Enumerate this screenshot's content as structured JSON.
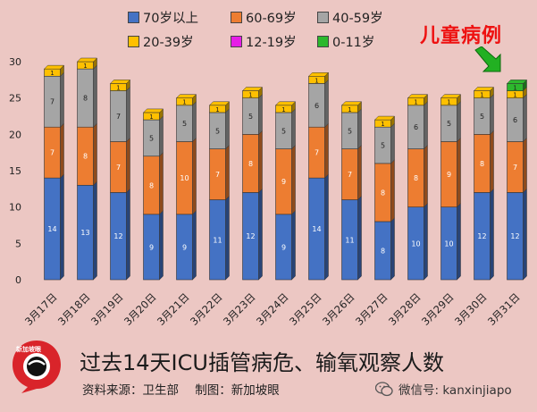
{
  "legend": [
    {
      "label": "70岁以上",
      "color": "#4472c4"
    },
    {
      "label": "60-69岁",
      "color": "#ed7d31"
    },
    {
      "label": "40-59岁",
      "color": "#a5a5a5"
    },
    {
      "label": "20-39岁",
      "color": "#ffc000"
    },
    {
      "label": "12-19岁",
      "color": "#e61ee6"
    },
    {
      "label": "0-11岁",
      "color": "#2db82d"
    }
  ],
  "annotation": "儿童病例",
  "footer": {
    "title": "过去14天ICU插管病危、输氧观察人数",
    "source": "资料来源：卫生部",
    "credit": "制图：新加坡眼",
    "logo_text": "新加坡眼",
    "wechat": "微信号: kanxinjiapo"
  },
  "chart_data": {
    "type": "bar",
    "stacked": true,
    "title": "过去14天ICU插管病危、输氧观察人数",
    "ylim": [
      0,
      30
    ],
    "yticks": [
      0,
      5,
      10,
      15,
      20,
      25,
      30
    ],
    "categories": [
      "3月17日",
      "3月18日",
      "3月19日",
      "3月20日",
      "3月21日",
      "3月22日",
      "3月23日",
      "3月24日",
      "3月25日",
      "3月26日",
      "3月27日",
      "3月28日",
      "3月29日",
      "3月30日",
      "3月31日"
    ],
    "series": [
      {
        "name": "70岁以上",
        "color": "#4472c4",
        "values": [
          14,
          13,
          12,
          9,
          9,
          11,
          12,
          9,
          14,
          11,
          8,
          10,
          10,
          12,
          12
        ]
      },
      {
        "name": "60-69岁",
        "color": "#ed7d31",
        "values": [
          7,
          8,
          7,
          8,
          10,
          7,
          8,
          9,
          7,
          7,
          8,
          8,
          9,
          8,
          7
        ]
      },
      {
        "name": "40-59岁",
        "color": "#a5a5a5",
        "values": [
          7,
          8,
          7,
          5,
          5,
          5,
          5,
          5,
          6,
          5,
          5,
          6,
          5,
          5,
          6
        ]
      },
      {
        "name": "20-39岁",
        "color": "#ffc000",
        "values": [
          1,
          1,
          1,
          1,
          1,
          1,
          1,
          1,
          1,
          1,
          1,
          1,
          1,
          1,
          1
        ]
      },
      {
        "name": "12-19岁",
        "color": "#e61ee6",
        "values": [
          0,
          0,
          0,
          0,
          0,
          0,
          0,
          0,
          0,
          0,
          0,
          0,
          0,
          0,
          0
        ]
      },
      {
        "name": "0-11岁",
        "color": "#2db82d",
        "values": [
          0,
          0,
          0,
          0,
          0,
          0,
          0,
          0,
          0,
          0,
          0,
          0,
          0,
          0,
          1
        ]
      }
    ]
  }
}
